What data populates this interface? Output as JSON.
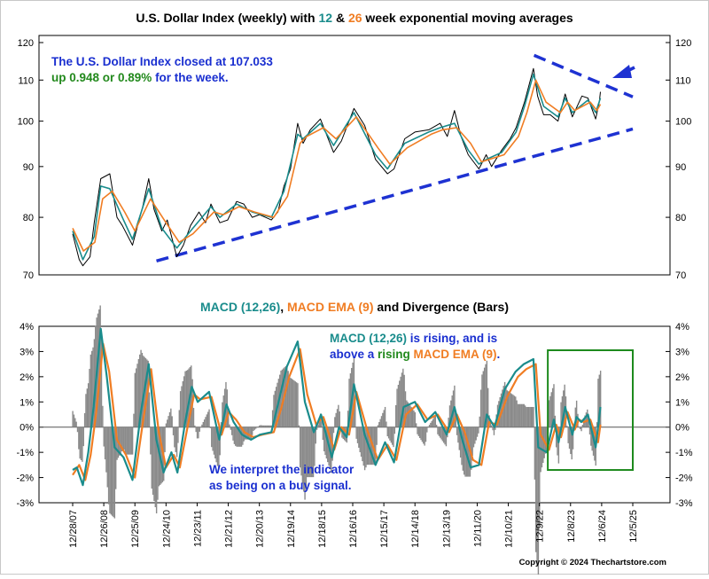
{
  "colors": {
    "price": "#000000",
    "ema12": "#1a8c8c",
    "ema26": "#f07d23",
    "macd": "#1a8c8c",
    "signal": "#f07d23",
    "histogram": "#8a8a8a",
    "trendline": "#1e32d2",
    "box": "#1d8a1d",
    "note_blue": "#1a2fd0",
    "note_green": "#22891c",
    "title": "#000000"
  },
  "chart_data": [
    {
      "type": "line",
      "title_parts": [
        {
          "text": "U.S. Dollar Index (weekly) with ",
          "role": "title"
        },
        {
          "text": "12",
          "role": "ema12"
        },
        {
          "text": " & ",
          "role": "title"
        },
        {
          "text": "26",
          "role": "ema26"
        },
        {
          "text": " week exponential moving averages",
          "role": "title"
        }
      ],
      "y_scale": "log",
      "ylim": [
        70,
        120
      ],
      "yticks": [
        70,
        80,
        90,
        100,
        110,
        120
      ],
      "grid": false,
      "x_tick_labels": [
        "12/28/07",
        "12/26/08",
        "12/25/09",
        "12/24/10",
        "12/23/11",
        "12/21/12",
        "12/20/13",
        "12/19/14",
        "12/18/15",
        "12/16/16",
        "12/15/17",
        "12/14/18",
        "12/13/19",
        "12/11/20",
        "12/10/21",
        "12/9/22",
        "12/8/23",
        "12/6/24",
        "12/5/25"
      ],
      "x_domain": [
        "2007-12-28",
        "2025-12-05"
      ],
      "series": [
        {
          "role": "price",
          "x": [
            "2007-12-28",
            "2008-03-14",
            "2008-04-25",
            "2008-07-18",
            "2008-09-05",
            "2008-11-21",
            "2009-03-06",
            "2009-05-29",
            "2009-07-31",
            "2009-11-27",
            "2010-03-26",
            "2010-06-04",
            "2010-08-06",
            "2010-11-05",
            "2011-01-07",
            "2011-04-29",
            "2011-07-15",
            "2011-10-07",
            "2012-01-13",
            "2012-03-30",
            "2012-06-01",
            "2012-09-14",
            "2012-12-14",
            "2013-03-29",
            "2013-06-21",
            "2013-09-27",
            "2013-12-20",
            "2014-05-09",
            "2014-07-25",
            "2014-10-03",
            "2014-12-19",
            "2015-03-13",
            "2015-05-15",
            "2015-08-07",
            "2015-12-04",
            "2016-05-06",
            "2016-08-05",
            "2016-12-30",
            "2017-05-05",
            "2017-09-08",
            "2018-01-26",
            "2018-04-13",
            "2018-08-17",
            "2018-12-14",
            "2019-05-24",
            "2019-10-04",
            "2019-12-27",
            "2020-03-20",
            "2020-06-05",
            "2020-08-28",
            "2020-12-31",
            "2021-03-26",
            "2021-05-28",
            "2021-09-24",
            "2021-12-31",
            "2022-03-11",
            "2022-06-17",
            "2022-09-30",
            "2022-11-18",
            "2023-01-27",
            "2023-04-14",
            "2023-07-14",
            "2023-10-06",
            "2023-12-29",
            "2024-04-19",
            "2024-06-28",
            "2024-09-27",
            "2024-11-08",
            "2024-11-22"
          ],
          "values": [
            77.0,
            72.5,
            71.5,
            73.0,
            79.0,
            87.5,
            88.5,
            80.0,
            78.5,
            75.0,
            82.0,
            87.5,
            81.5,
            77.5,
            79.5,
            73.0,
            75.0,
            78.5,
            81.0,
            79.0,
            82.5,
            79.0,
            79.5,
            83.0,
            82.5,
            80.0,
            80.5,
            79.5,
            81.0,
            86.0,
            89.5,
            99.5,
            95.0,
            98.0,
            100.5,
            93.0,
            95.5,
            103.0,
            99.0,
            91.5,
            88.5,
            89.5,
            96.0,
            97.5,
            98.0,
            99.5,
            96.5,
            102.5,
            96.5,
            92.5,
            89.5,
            92.5,
            90.0,
            93.5,
            96.0,
            98.5,
            104.5,
            113.0,
            106.0,
            101.5,
            101.5,
            100.0,
            106.5,
            101.0,
            106.0,
            105.5,
            100.5,
            104.5,
            107.033
          ]
        },
        {
          "role": "ema12",
          "x": [
            "2007-12-28",
            "2008-04-25",
            "2008-09-05",
            "2008-11-21",
            "2009-03-06",
            "2009-07-31",
            "2009-11-27",
            "2010-06-04",
            "2010-11-05",
            "2011-04-29",
            "2011-10-07",
            "2012-06-01",
            "2012-09-14",
            "2013-03-29",
            "2013-09-27",
            "2014-05-09",
            "2014-10-03",
            "2015-03-13",
            "2015-05-15",
            "2015-12-04",
            "2016-05-06",
            "2016-12-30",
            "2017-09-08",
            "2018-01-26",
            "2018-08-17",
            "2019-05-24",
            "2019-10-04",
            "2020-03-20",
            "2020-08-28",
            "2020-12-31",
            "2021-03-26",
            "2021-09-24",
            "2022-03-11",
            "2022-06-17",
            "2022-09-30",
            "2023-01-27",
            "2023-07-14",
            "2023-10-06",
            "2023-12-29",
            "2024-06-28",
            "2024-09-27",
            "2024-11-22"
          ],
          "values": [
            77.5,
            72.5,
            76.5,
            86.0,
            85.5,
            80.0,
            76.0,
            85.5,
            78.0,
            74.5,
            77.5,
            82.0,
            80.0,
            82.5,
            81.0,
            80.0,
            85.0,
            97.0,
            96.0,
            99.5,
            94.5,
            102.0,
            92.5,
            89.5,
            95.0,
            97.5,
            98.5,
            99.5,
            93.5,
            90.5,
            91.5,
            93.0,
            97.5,
            103.5,
            111.5,
            103.5,
            101.0,
            105.5,
            102.0,
            105.0,
            102.0,
            105.5
          ]
        },
        {
          "role": "ema26",
          "x": [
            "2007-12-28",
            "2008-05-02",
            "2008-09-12",
            "2008-12-12",
            "2009-04-03",
            "2009-08-28",
            "2009-12-25",
            "2010-06-25",
            "2010-12-03",
            "2011-05-27",
            "2011-11-04",
            "2012-07-06",
            "2012-10-26",
            "2013-04-26",
            "2013-10-25",
            "2014-06-06",
            "2014-11-14",
            "2015-04-10",
            "2015-06-26",
            "2016-01-08",
            "2016-06-03",
            "2017-01-27",
            "2017-10-06",
            "2018-02-23",
            "2018-09-14",
            "2019-06-21",
            "2019-11-01",
            "2020-04-17",
            "2020-09-25",
            "2021-01-29",
            "2021-04-30",
            "2021-10-22",
            "2022-04-08",
            "2022-07-15",
            "2022-10-28",
            "2023-02-24",
            "2023-08-11",
            "2023-11-03",
            "2024-01-26",
            "2024-07-26",
            "2024-10-11",
            "2024-11-22"
          ],
          "values": [
            78.0,
            74.0,
            75.5,
            83.5,
            85.0,
            81.0,
            77.5,
            83.5,
            79.5,
            75.5,
            77.0,
            81.0,
            80.5,
            82.0,
            81.0,
            80.0,
            84.0,
            95.0,
            96.5,
            98.5,
            96.0,
            101.0,
            94.0,
            90.5,
            94.0,
            97.0,
            98.0,
            98.5,
            95.0,
            91.0,
            91.5,
            92.5,
            96.5,
            102.0,
            110.0,
            104.5,
            102.0,
            104.5,
            102.5,
            104.5,
            102.5,
            104.0
          ]
        }
      ],
      "trendlines": [
        {
          "style": "dashed",
          "x": [
            "2010-09-03",
            "2025-12-05"
          ],
          "values": [
            72.3,
            98.2
          ]
        },
        {
          "style": "dashed",
          "x": [
            "2022-10-07",
            "2025-12-05"
          ],
          "values": [
            116.5,
            105.8
          ]
        }
      ],
      "annotation": {
        "line1_parts": [
          {
            "text": "The U.S. Dollar Index closed at 107.033",
            "role": "note_blue"
          }
        ],
        "line2_parts": [
          {
            "text": "up 0.948 or 0.89%",
            "role": "note_green"
          },
          {
            "text": " for the week.",
            "role": "note_blue"
          }
        ]
      }
    },
    {
      "type": "line",
      "title_parts": [
        {
          "text": "MACD (12,26)",
          "role": "macd"
        },
        {
          "text": ", ",
          "role": "title"
        },
        {
          "text": "MACD EMA (9)",
          "role": "signal"
        },
        {
          "text": " and Divergence (Bars)",
          "role": "title"
        }
      ],
      "ylim": [
        -3,
        4
      ],
      "ytick_labels": [
        "4%",
        "3%",
        "2%",
        "1%",
        "0%",
        "-1%",
        "-2%",
        "-3%"
      ],
      "yticks": [
        4,
        3,
        2,
        1,
        0,
        -1,
        -2,
        -3
      ],
      "x_domain": [
        "2007-12-28",
        "2025-12-05"
      ],
      "series": [
        {
          "role": "macd",
          "name": "MACD (12,26)",
          "x": [
            "2007-12-28",
            "2008-02-15",
            "2008-04-25",
            "2008-06-27",
            "2008-08-29",
            "2008-11-21",
            "2009-01-30",
            "2009-05-01",
            "2009-08-14",
            "2009-11-27",
            "2010-03-05",
            "2010-06-04",
            "2010-09-03",
            "2010-11-26",
            "2011-02-25",
            "2011-05-06",
            "2011-08-05",
            "2011-10-21",
            "2011-12-30",
            "2012-05-11",
            "2012-09-07",
            "2012-11-30",
            "2013-02-22",
            "2013-05-31",
            "2013-09-13",
            "2013-12-27",
            "2014-05-09",
            "2014-08-01",
            "2014-11-07",
            "2015-03-13",
            "2015-06-05",
            "2015-09-18",
            "2015-12-11",
            "2016-04-15",
            "2016-07-08",
            "2016-10-07",
            "2016-12-30",
            "2017-05-05",
            "2017-09-08",
            "2017-12-29",
            "2018-04-13",
            "2018-08-03",
            "2018-12-14",
            "2019-04-12",
            "2019-08-09",
            "2019-12-20",
            "2020-03-20",
            "2020-06-19",
            "2020-09-25",
            "2020-12-31",
            "2021-04-02",
            "2021-07-02",
            "2021-10-29",
            "2022-03-04",
            "2022-06-10",
            "2022-09-30",
            "2022-11-25",
            "2023-03-03",
            "2023-05-26",
            "2023-07-21",
            "2023-10-06",
            "2023-12-29",
            "2024-02-16",
            "2024-04-12",
            "2024-06-28",
            "2024-09-27",
            "2024-11-22"
          ],
          "values": [
            -1.7,
            -1.6,
            -2.3,
            -1.0,
            0.8,
            3.9,
            2.0,
            -0.8,
            -1.2,
            -2.1,
            0.6,
            2.5,
            -0.5,
            -1.8,
            -1.0,
            -1.8,
            0.2,
            1.6,
            1.0,
            1.4,
            -0.5,
            0.9,
            0.2,
            -0.3,
            -0.5,
            -0.3,
            -0.2,
            1.0,
            2.4,
            3.4,
            1.0,
            -0.2,
            0.5,
            -1.2,
            0.0,
            -0.4,
            1.7,
            -0.3,
            -1.5,
            -0.6,
            -1.4,
            0.8,
            1.0,
            0.2,
            0.6,
            -0.3,
            0.8,
            -0.5,
            -1.6,
            -1.5,
            0.5,
            0.0,
            1.5,
            2.2,
            2.5,
            2.7,
            -0.8,
            -1.0,
            0.3,
            -0.6,
            0.8,
            -0.3,
            0.4,
            0.2,
            0.5,
            -0.8,
            0.8
          ]
        },
        {
          "role": "signal",
          "name": "MACD EMA (9)",
          "x": [
            "2007-12-28",
            "2008-03-14",
            "2008-05-23",
            "2008-07-25",
            "2008-09-26",
            "2008-12-19",
            "2009-02-27",
            "2009-05-29",
            "2009-09-11",
            "2009-12-25",
            "2010-04-02",
            "2010-07-02",
            "2010-10-01",
            "2010-12-24",
            "2011-03-25",
            "2011-06-03",
            "2011-09-02",
            "2011-11-18",
            "2012-01-27",
            "2012-06-08",
            "2012-10-05",
            "2012-12-28",
            "2013-03-22",
            "2013-06-28",
            "2013-10-11",
            "2014-01-24",
            "2014-06-06",
            "2014-08-29",
            "2014-12-05",
            "2015-04-10",
            "2015-07-03",
            "2015-10-16",
            "2016-01-08",
            "2016-05-13",
            "2016-08-05",
            "2016-11-04",
            "2017-01-27",
            "2017-06-02",
            "2017-10-06",
            "2018-01-26",
            "2018-05-11",
            "2018-08-31",
            "2019-01-11",
            "2019-05-10",
            "2019-09-06",
            "2020-01-17",
            "2020-04-17",
            "2020-07-17",
            "2020-10-23",
            "2021-01-29",
            "2021-04-30",
            "2021-07-30",
            "2021-11-26",
            "2022-04-01",
            "2022-07-08",
            "2022-10-28",
            "2022-12-23",
            "2023-03-31",
            "2023-06-23",
            "2023-08-18",
            "2023-11-03",
            "2024-01-26",
            "2024-03-15",
            "2024-05-10",
            "2024-07-26",
            "2024-10-25",
            "2024-11-22"
          ],
          "values": [
            -1.9,
            -1.5,
            -2.1,
            -1.1,
            0.5,
            3.3,
            2.2,
            -0.5,
            -1.1,
            -2.0,
            0.3,
            2.3,
            -0.2,
            -1.6,
            -1.1,
            -1.6,
            0.0,
            1.3,
            1.1,
            1.2,
            -0.3,
            0.6,
            0.3,
            -0.2,
            -0.4,
            -0.3,
            -0.2,
            0.7,
            2.0,
            3.1,
            1.3,
            0.1,
            0.4,
            -0.9,
            0.0,
            -0.3,
            1.4,
            -0.1,
            -1.3,
            -0.7,
            -1.3,
            0.5,
            0.9,
            0.3,
            0.5,
            -0.2,
            0.5,
            -0.2,
            -1.3,
            -1.5,
            0.2,
            0.1,
            1.2,
            2.0,
            2.3,
            2.5,
            -0.3,
            -0.9,
            0.1,
            -0.4,
            0.6,
            -0.1,
            0.3,
            0.2,
            0.3,
            -0.6,
            0.1
          ]
        }
      ],
      "annotations": [
        {
          "parts": [
            {
              "text": "MACD (12,26)",
              "role": "macd"
            },
            {
              "text": " is rising",
              "role": "note_blue"
            },
            {
              "text": ", and is",
              "role": "note_blue"
            }
          ]
        },
        {
          "parts": [
            {
              "text": "above a ",
              "role": "note_blue"
            },
            {
              "text": "rising",
              "role": "note_green"
            },
            {
              "text": " MACD EMA (9)",
              "role": "signal"
            },
            {
              "text": ".",
              "role": "note_blue"
            }
          ]
        },
        {
          "parts": [
            {
              "text": "We interpret the indicator",
              "role": "note_blue"
            }
          ]
        },
        {
          "parts": [
            {
              "text": "as being on a buy signal.",
              "role": "note_blue"
            }
          ]
        }
      ],
      "highlight_box": {
        "x": [
          "2023-03-17",
          "2025-12-05"
        ],
        "y": [
          -1.7,
          3.05
        ]
      }
    }
  ],
  "copyright": "Copyright © 2024 Thechartstore.com"
}
